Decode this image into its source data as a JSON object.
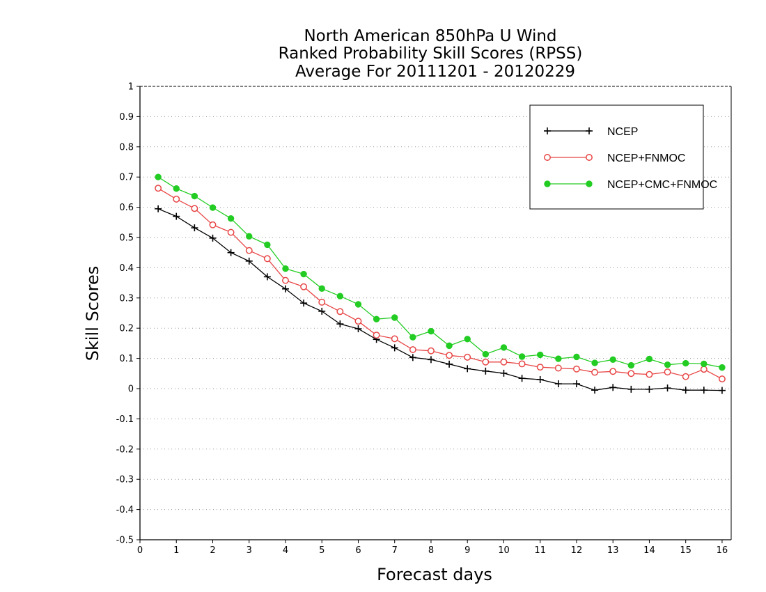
{
  "chart_data": {
    "type": "line",
    "title": [
      "North American 850hPa U Wind",
      "Ranked Probability Skill Scores (RPSS)",
      "Average For 20111201 - 20120229"
    ],
    "xlabel": "Forecast days",
    "ylabel": "Skill Scores",
    "xlim": [
      0,
      16.25
    ],
    "ylim": [
      -0.5,
      1
    ],
    "xticks": [
      0,
      1,
      2,
      3,
      4,
      5,
      6,
      7,
      8,
      9,
      10,
      11,
      12,
      13,
      14,
      15,
      16
    ],
    "yticks": [
      -0.5,
      -0.4,
      -0.3,
      -0.2,
      -0.1,
      0,
      0.1,
      0.2,
      0.3,
      0.4,
      0.5,
      0.6,
      0.7,
      0.8,
      0.9,
      1
    ],
    "ytick_labels": [
      "-0.5",
      "-0.4",
      "-0.3",
      "-0.2",
      "-0.1",
      "0",
      "0.1",
      "0.2",
      "0.3",
      "0.4",
      "0.5",
      "0.6",
      "0.7",
      "0.8",
      "0.9",
      "1"
    ],
    "grid": "dotted horizontal",
    "legend_position": "top-right",
    "x": [
      0.5,
      1,
      1.5,
      2,
      2.5,
      3,
      3.5,
      4,
      4.5,
      5,
      5.5,
      6,
      6.5,
      7,
      7.5,
      8,
      8.5,
      9,
      9.5,
      10,
      10.5,
      11,
      11.5,
      12,
      12.5,
      13,
      13.5,
      14,
      14.5,
      15,
      15.5,
      16
    ],
    "series": [
      {
        "name": "NCEP",
        "color": "#000000",
        "marker": "plus",
        "values": [
          0.595,
          0.57,
          0.532,
          0.498,
          0.45,
          0.422,
          0.37,
          0.33,
          0.283,
          0.256,
          0.214,
          0.198,
          0.163,
          0.135,
          0.103,
          0.096,
          0.081,
          0.066,
          0.058,
          0.051,
          0.034,
          0.03,
          0.016,
          0.016,
          -0.005,
          0.004,
          -0.002,
          -0.002,
          0.002,
          -0.005,
          -0.005,
          -0.006
        ]
      },
      {
        "name": "NCEP+FNMOC",
        "color": "#e84545",
        "marker": "open-circle",
        "values": [
          0.663,
          0.627,
          0.596,
          0.542,
          0.517,
          0.457,
          0.43,
          0.358,
          0.337,
          0.286,
          0.255,
          0.223,
          0.177,
          0.165,
          0.129,
          0.125,
          0.11,
          0.104,
          0.088,
          0.088,
          0.082,
          0.071,
          0.068,
          0.065,
          0.054,
          0.057,
          0.05,
          0.047,
          0.055,
          0.04,
          0.064,
          0.032
        ]
      },
      {
        "name": "NCEP+CMC+FNMOC",
        "color": "#22cc22",
        "marker": "filled-circle",
        "values": [
          0.7,
          0.662,
          0.637,
          0.599,
          0.563,
          0.504,
          0.476,
          0.397,
          0.379,
          0.331,
          0.306,
          0.279,
          0.23,
          0.235,
          0.17,
          0.19,
          0.142,
          0.164,
          0.114,
          0.136,
          0.106,
          0.112,
          0.099,
          0.105,
          0.085,
          0.096,
          0.077,
          0.098,
          0.079,
          0.084,
          0.082,
          0.07
        ]
      }
    ]
  }
}
